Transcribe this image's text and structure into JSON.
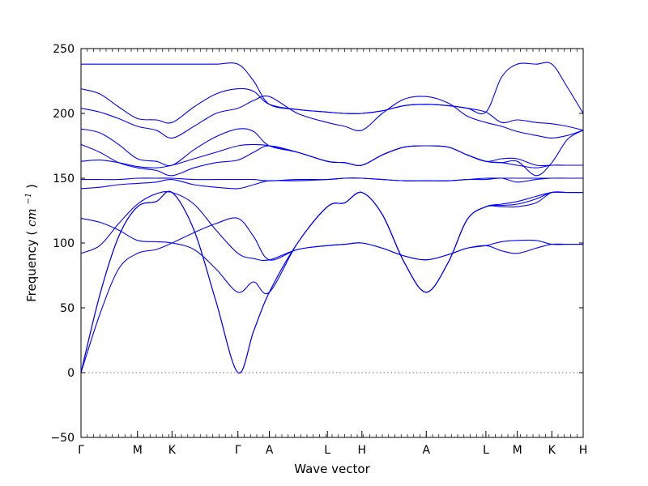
{
  "chart_data": {
    "type": "line",
    "title": "",
    "xlabel": "Wave vector",
    "ylabel": "Frequency",
    "ylabel_unit": "cm",
    "ylabel_unit_exp": "−1",
    "ylim": [
      -50,
      250
    ],
    "yticks": [
      -50,
      0,
      50,
      100,
      150,
      200,
      250
    ],
    "ytick_labels": [
      "−50",
      "0",
      "50",
      "100",
      "150",
      "200",
      "250"
    ],
    "xlim": [
      0,
      16
    ],
    "high_symmetry_points": [
      {
        "label": "Γ",
        "x": 0
      },
      {
        "label": "M",
        "x": 1.8
      },
      {
        "label": "K",
        "x": 2.9
      },
      {
        "label": "Γ",
        "x": 5.0
      },
      {
        "label": "A",
        "x": 6.0
      },
      {
        "label": "L",
        "x": 7.85
      },
      {
        "label": "H",
        "x": 8.95
      },
      {
        "label": "A",
        "x": 11.0
      },
      {
        "label": "L",
        "x": 12.9
      },
      {
        "label": "M",
        "x": 13.9
      },
      {
        "label": "K",
        "x": 15.0
      },
      {
        "label": "H",
        "x": 16.0
      }
    ],
    "zero_line": true,
    "series_color": "#0000ff",
    "series": [
      {
        "x": [
          0,
          0.6,
          1.2,
          1.8,
          2.4,
          2.9,
          3.6,
          4.3,
          5.0,
          5.5,
          6.0,
          6.9,
          7.85,
          8.4,
          8.95,
          9.6,
          10.3,
          11.0,
          11.7,
          12.3,
          12.9,
          13.4,
          13.9,
          14.5,
          15.0,
          15.5,
          16.0
        ],
        "values": [
          0,
          60,
          105,
          128,
          132,
          139,
          110,
          55,
          0,
          32,
          62,
          100,
          128,
          131,
          139,
          122,
          85,
          62,
          85,
          118,
          128,
          128,
          128,
          131,
          139,
          139,
          139
        ]
      },
      {
        "x": [
          0,
          0.6,
          1.2,
          1.8,
          2.4,
          2.9,
          3.6,
          4.3,
          5.0,
          5.5,
          6.0,
          6.9,
          7.85,
          8.4,
          8.95,
          9.6,
          10.3,
          11.0,
          11.7,
          12.3,
          12.9,
          13.4,
          13.9,
          14.5,
          15.0,
          15.5,
          16.0
        ],
        "values": [
          0,
          60,
          105,
          128,
          132,
          139,
          110,
          55,
          0,
          32,
          62,
          100,
          128,
          131,
          139,
          122,
          85,
          62,
          85,
          118,
          128,
          129,
          130,
          134,
          139,
          139,
          139
        ]
      },
      {
        "x": [
          0,
          0.6,
          1.2,
          1.8,
          2.4,
          2.9,
          3.6,
          4.3,
          5.0,
          5.5,
          6.0,
          6.9,
          7.85,
          8.4,
          8.95,
          9.6,
          10.3,
          11.0,
          11.7,
          12.3,
          12.9,
          13.4,
          13.9,
          14.5,
          15.0,
          15.5,
          16.0
        ],
        "values": [
          0,
          45,
          80,
          92,
          95,
          100,
          108,
          115,
          119,
          105,
          87,
          95,
          98,
          99,
          100,
          96,
          90,
          87,
          91,
          96,
          98,
          101,
          102,
          102,
          99,
          99,
          99
        ]
      },
      {
        "x": [
          0,
          0.6,
          1.2,
          1.8,
          2.4,
          2.9,
          3.6,
          4.3,
          5.0,
          5.5,
          6.0,
          6.9,
          7.85,
          8.4,
          8.95,
          9.6,
          10.3,
          11.0,
          11.7,
          12.3,
          12.9,
          13.4,
          13.9,
          14.5,
          15.0,
          15.5,
          16.0
        ],
        "values": [
          92,
          98,
          115,
          130,
          138,
          139,
          130,
          110,
          92,
          88,
          87,
          95,
          98,
          99,
          100,
          96,
          90,
          87,
          91,
          96,
          98,
          94,
          92,
          96,
          99,
          99,
          99
        ]
      },
      {
        "x": [
          0,
          0.6,
          1.2,
          1.8,
          2.4,
          2.9,
          3.6,
          4.3,
          5.0,
          5.5,
          6.0,
          6.9,
          7.85,
          8.4,
          8.95,
          9.6,
          10.3,
          11.0,
          11.7,
          12.3,
          12.9,
          13.4,
          13.9,
          14.5,
          15.0,
          15.5,
          16.0
        ],
        "values": [
          119,
          116,
          110,
          102,
          101,
          100,
          95,
          80,
          62,
          70,
          62,
          100,
          128,
          131,
          139,
          122,
          85,
          62,
          85,
          118,
          128,
          130,
          132,
          136,
          139,
          139,
          139
        ]
      },
      {
        "x": [
          0,
          0.6,
          1.2,
          1.8,
          2.4,
          2.9,
          3.6,
          4.3,
          5.0,
          5.5,
          6.0,
          6.9,
          7.85,
          8.4,
          8.95,
          9.6,
          10.3,
          11.0,
          11.7,
          12.3,
          12.9,
          13.4,
          13.9,
          14.5,
          15.0,
          15.5,
          16.0
        ],
        "values": [
          142,
          143,
          145,
          146,
          147,
          149,
          145,
          143,
          142,
          145,
          148,
          148,
          149,
          150,
          150,
          149,
          148,
          148,
          148,
          149,
          149,
          150,
          147,
          149,
          150,
          150,
          150
        ]
      },
      {
        "x": [
          0,
          0.6,
          1.2,
          1.8,
          2.4,
          2.9,
          3.6,
          4.3,
          5.0,
          5.5,
          6.0,
          6.9,
          7.85,
          8.4,
          8.95,
          9.6,
          10.3,
          11.0,
          11.7,
          12.3,
          12.9,
          13.4,
          13.9,
          14.5,
          15.0,
          15.5,
          16.0
        ],
        "values": [
          149,
          149,
          149,
          150,
          150,
          150,
          149,
          149,
          149,
          149,
          148,
          149,
          149,
          150,
          150,
          149,
          148,
          148,
          148,
          149,
          150,
          150,
          150,
          150,
          150,
          150,
          150
        ]
      },
      {
        "x": [
          0,
          0.6,
          1.2,
          1.8,
          2.4,
          2.9,
          3.6,
          4.3,
          5.0,
          5.5,
          6.0,
          6.9,
          7.85,
          8.4,
          8.95,
          9.6,
          10.3,
          11.0,
          11.7,
          12.3,
          12.9,
          13.4,
          13.9,
          14.5,
          15.0,
          15.5,
          16.0
        ],
        "values": [
          163,
          164,
          162,
          159,
          158,
          160,
          165,
          170,
          175,
          176,
          175,
          170,
          163,
          162,
          160,
          168,
          174,
          175,
          174,
          168,
          163,
          162,
          160,
          158,
          160,
          160,
          160
        ]
      },
      {
        "x": [
          0,
          0.6,
          1.2,
          1.8,
          2.4,
          2.9,
          3.6,
          4.3,
          5.0,
          5.5,
          6.0,
          6.9,
          7.85,
          8.4,
          8.95,
          9.6,
          10.3,
          11.0,
          11.7,
          12.3,
          12.9,
          13.4,
          13.9,
          14.5,
          15.0,
          15.5,
          16.0
        ],
        "values": [
          176,
          170,
          162,
          158,
          156,
          152,
          158,
          162,
          164,
          170,
          175,
          170,
          163,
          162,
          160,
          168,
          174,
          175,
          174,
          168,
          163,
          165,
          165,
          160,
          160,
          160,
          160
        ]
      },
      {
        "x": [
          0,
          0.6,
          1.2,
          1.8,
          2.4,
          2.9,
          3.6,
          4.3,
          5.0,
          5.5,
          6.0,
          6.9,
          7.85,
          8.4,
          8.95,
          9.6,
          10.3,
          11.0,
          11.7,
          12.3,
          12.9,
          13.4,
          13.9,
          14.5,
          15.0,
          15.5,
          16.0
        ],
        "values": [
          188,
          185,
          176,
          165,
          163,
          160,
          172,
          182,
          188,
          186,
          175,
          170,
          163,
          162,
          160,
          168,
          174,
          175,
          174,
          168,
          163,
          162,
          163,
          152,
          162,
          180,
          187
        ]
      },
      {
        "x": [
          0,
          0.6,
          1.2,
          1.8,
          2.4,
          2.9,
          3.6,
          4.3,
          5.0,
          5.5,
          6.0,
          6.9,
          7.85,
          8.4,
          8.95,
          9.6,
          10.3,
          11.0,
          11.7,
          12.3,
          12.9,
          13.4,
          13.9,
          14.5,
          15.0,
          15.5,
          16.0
        ],
        "values": [
          204,
          201,
          196,
          190,
          187,
          181,
          190,
          200,
          204,
          210,
          213,
          200,
          193,
          190,
          187,
          200,
          211,
          213,
          208,
          198,
          193,
          190,
          186,
          183,
          181,
          183,
          187
        ]
      },
      {
        "x": [
          0,
          0.6,
          1.2,
          1.8,
          2.4,
          2.9,
          3.6,
          4.3,
          5.0,
          5.5,
          6.0,
          6.9,
          7.85,
          8.4,
          8.95,
          9.6,
          10.3,
          11.0,
          11.7,
          12.3,
          12.9,
          13.4,
          13.9,
          14.5,
          15.0,
          15.5,
          16.0
        ],
        "values": [
          219,
          215,
          205,
          196,
          195,
          193,
          205,
          215,
          219,
          217,
          207,
          203,
          201,
          200,
          200,
          202,
          206,
          207,
          206,
          204,
          201,
          193,
          195,
          193,
          192,
          190,
          187
        ]
      },
      {
        "x": [
          0,
          0.6,
          1.2,
          1.8,
          2.4,
          2.9,
          3.6,
          4.3,
          5.0,
          5.5,
          6.0,
          6.9,
          7.85,
          8.4,
          8.95,
          9.6,
          10.3,
          11.0,
          11.7,
          12.3,
          12.9,
          13.4,
          13.9,
          14.5,
          15.0,
          15.5,
          16.0
        ],
        "values": [
          238,
          238,
          238,
          238,
          238,
          238,
          238,
          238,
          238,
          225,
          207,
          203,
          201,
          200,
          200,
          202,
          206,
          207,
          206,
          204,
          201,
          228,
          238,
          238,
          238,
          220,
          200
        ]
      }
    ]
  }
}
